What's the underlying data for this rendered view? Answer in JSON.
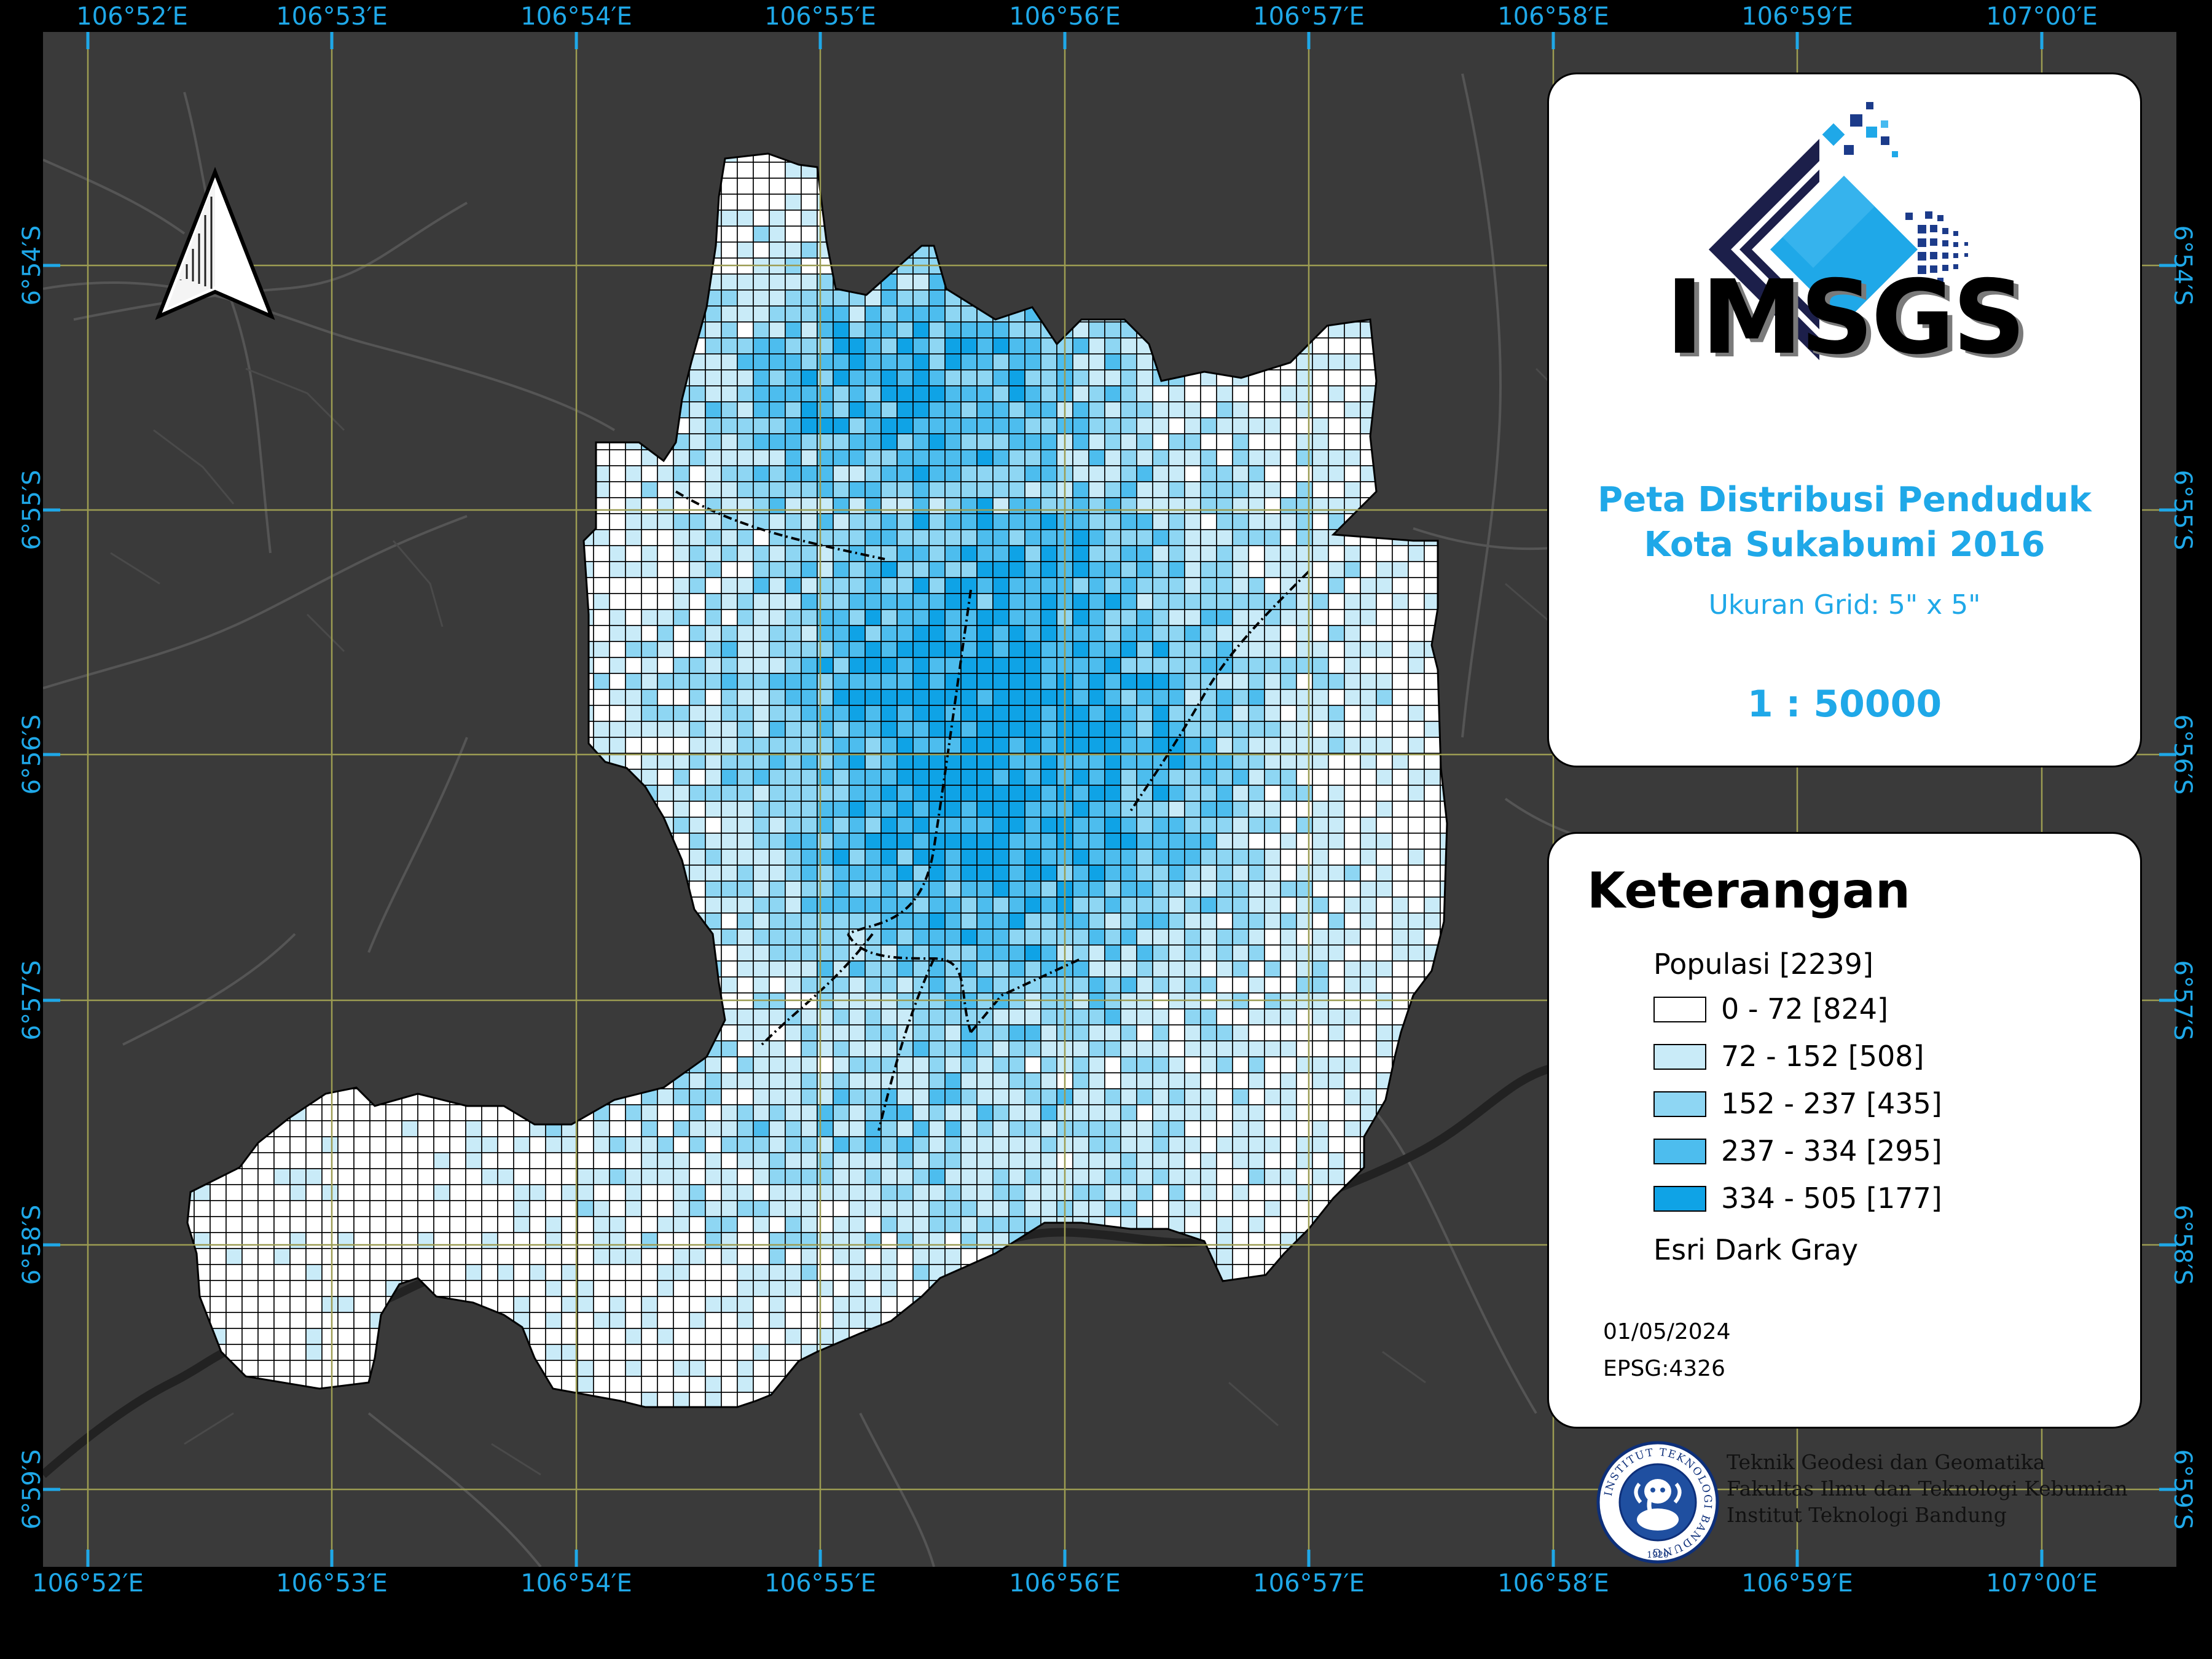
{
  "map": {
    "title_line1": "Peta Distribusi Penduduk",
    "title_line2": "Kota Sukabumi 2016",
    "grid_size": "Ukuran Grid: 5\" x 5\"",
    "scale": "1 : 50000",
    "logo_text": "IMSGS",
    "basemap": "Esri Dark Gray"
  },
  "coordinates": {
    "longitudes": [
      "106°52′E",
      "106°53′E",
      "106°54′E",
      "106°55′E",
      "106°56′E",
      "106°57′E",
      "106°58′E",
      "106°59′E",
      "107°00′E"
    ],
    "latitudes": [
      "6°54′S",
      "6°55′S",
      "6°56′S",
      "6°57′S",
      "6°58′S",
      "6°59′S"
    ]
  },
  "legend": {
    "heading": "Keterangan",
    "group_label": "Populasi [2239]",
    "classes": [
      {
        "label": "0 - 72 [824]",
        "color": "#ffffff"
      },
      {
        "label": "72 - 152 [508]",
        "color": "#c9ebf8"
      },
      {
        "label": "152 - 237 [435]",
        "color": "#8ed6f3"
      },
      {
        "label": "237 - 334 [295]",
        "color": "#4dbdee"
      },
      {
        "label": "334 - 505 [177]",
        "color": "#0fa3e6"
      }
    ],
    "date": "01/05/2024",
    "crs": "EPSG:4326"
  },
  "institution": {
    "line1": "Teknik Geodesi dan Geomatika",
    "line2": "Fakultas Ilmu dan Teknologi Kebumian",
    "line3": "Institut Teknologi Bandung",
    "seal_text": "INSTITUT TEKNOLOGI BANDUNG",
    "seal_year": "1920"
  },
  "colors": {
    "frame": "#000000",
    "basemap": "#3a3a3a",
    "graticule": "#9c9c52",
    "accent": "#1fa8e8",
    "logo_dark": "#1c1f4a"
  },
  "icons": [
    "north-arrow-icon",
    "imsgs-logo-icon",
    "itb-seal-icon"
  ]
}
